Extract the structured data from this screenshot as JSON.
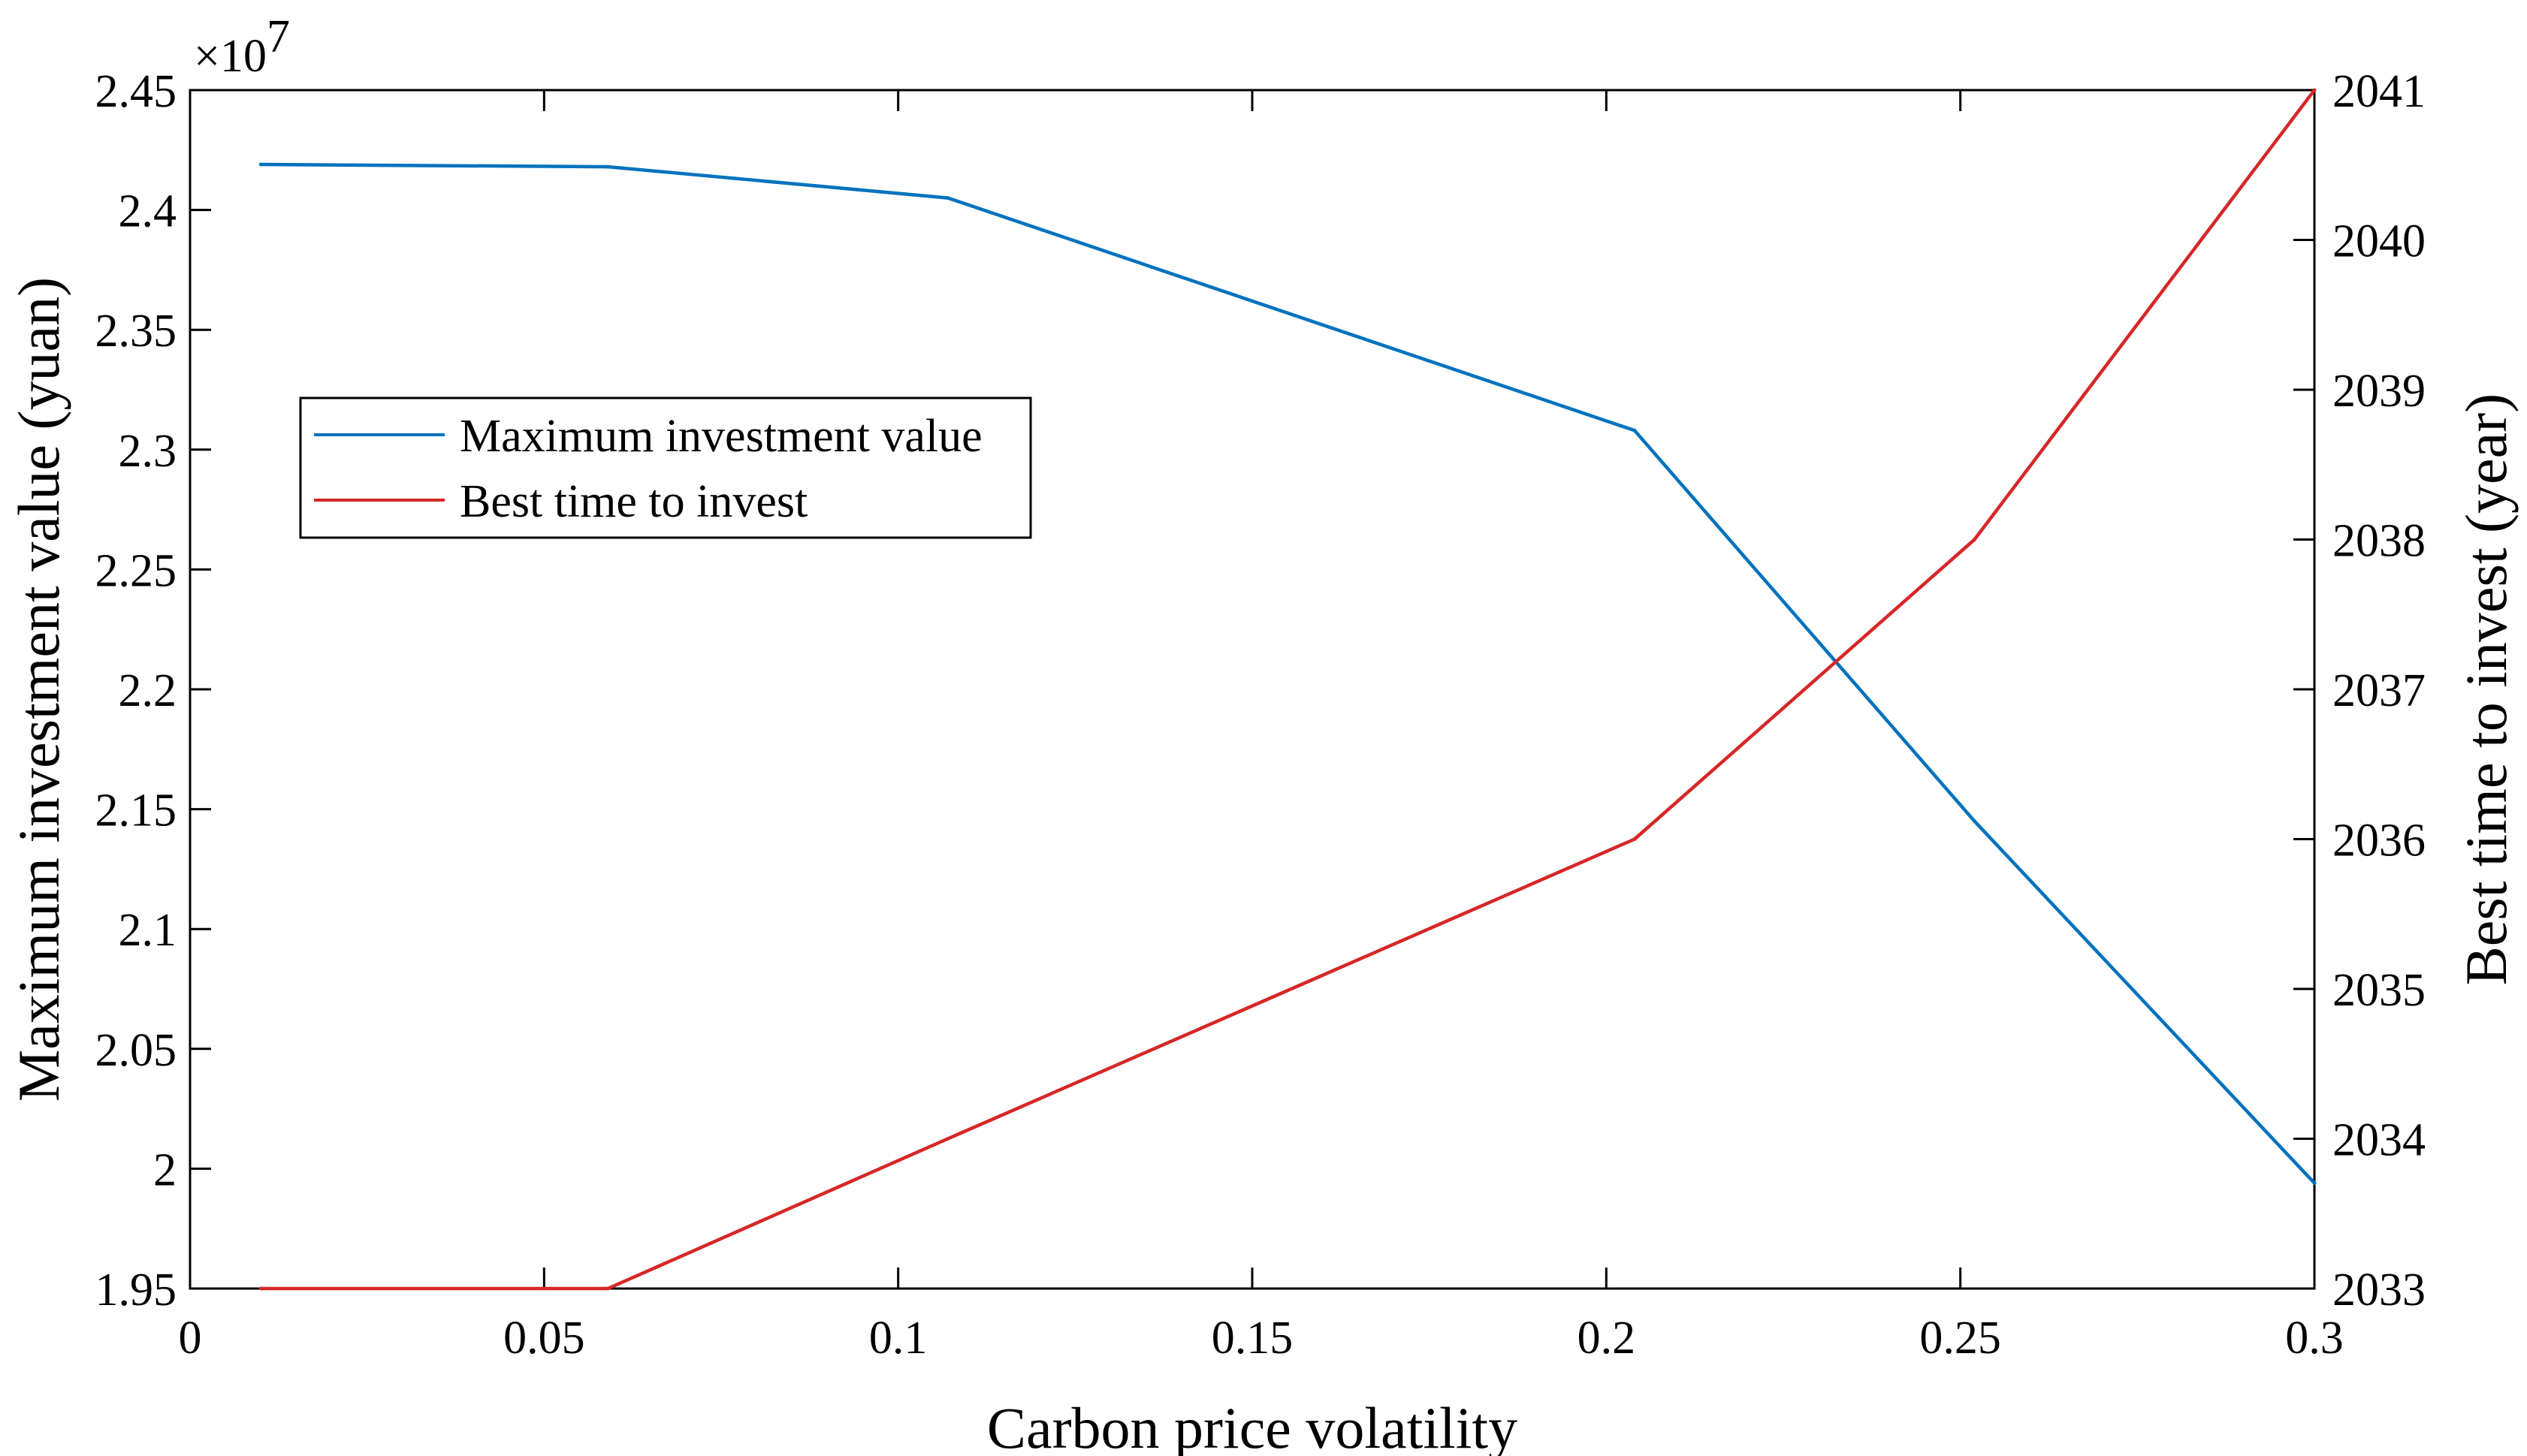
{
  "chart_data": {
    "type": "line",
    "title": "",
    "xlabel": "Carbon price volatility",
    "ylabel_left": "Maximum investment value (yuan)",
    "ylabel_right": "Best time to invest (year)",
    "xlim": [
      0,
      0.3
    ],
    "ylim_left": [
      1.95,
      2.45
    ],
    "ylim_right": [
      2033,
      2041
    ],
    "left_axis_multiplier": "×10",
    "left_axis_exponent": "7",
    "grid": false,
    "legend_position": "upper-left",
    "x_ticks": [
      "0",
      "0.05",
      "0.1",
      "0.15",
      "0.2",
      "0.25",
      "0.3"
    ],
    "left_ticks": [
      "1.95",
      "2",
      "2.05",
      "2.1",
      "2.15",
      "2.2",
      "2.25",
      "2.3",
      "2.35",
      "2.4",
      "2.45"
    ],
    "right_ticks": [
      "2033",
      "2034",
      "2035",
      "2036",
      "2037",
      "2038",
      "2039",
      "2040",
      "2041"
    ],
    "series": [
      {
        "name": "Maximum investment value",
        "axis": "left",
        "color": "#0072BD",
        "x": [
          0.01,
          0.059,
          0.107,
          0.204,
          0.252,
          0.3
        ],
        "y": [
          2.419,
          2.418,
          2.405,
          2.308,
          2.145,
          1.994
        ]
      },
      {
        "name": "Best time to invest",
        "axis": "right",
        "color": "#D62728",
        "x": [
          0.01,
          0.059,
          0.107,
          0.204,
          0.252,
          0.3
        ],
        "y": [
          2033,
          2033,
          2034,
          2036,
          2038,
          2041
        ]
      }
    ]
  }
}
